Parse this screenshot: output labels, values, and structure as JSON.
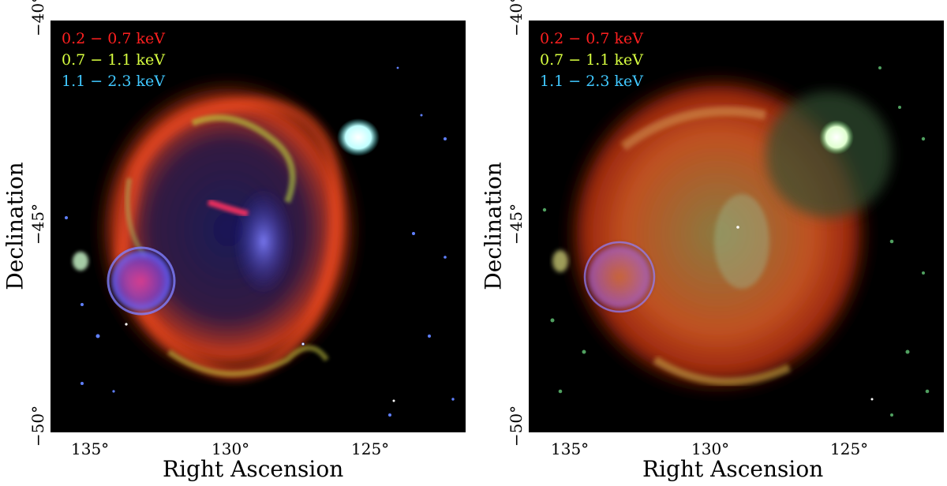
{
  "colors": {
    "soft_band": "#ff2020",
    "medium_band": "#d8ff40",
    "hard_band": "#40c8ff",
    "background": "#000000"
  },
  "panels": [
    {
      "legend": [
        {
          "text": "0.2 − 0.7 keV",
          "color": "#ff2020"
        },
        {
          "text": "0.7 − 1.1 keV",
          "color": "#d8ff40"
        },
        {
          "text": "1.1 − 2.3 keV",
          "color": "#40c8ff"
        }
      ],
      "x_axis": {
        "label": "Right Ascension",
        "ticks": [
          "135°",
          "130°",
          "125°"
        ]
      },
      "y_axis": {
        "label": "Declination",
        "ticks": [
          "−40°",
          "−45°",
          "−50°"
        ]
      }
    },
    {
      "legend": [
        {
          "text": "0.2 − 0.7 keV",
          "color": "#ff2020"
        },
        {
          "text": "0.7 − 1.1 keV",
          "color": "#d8ff40"
        },
        {
          "text": "1.1 − 2.3 keV",
          "color": "#40c8ff"
        }
      ],
      "x_axis": {
        "label": "Right Ascension",
        "ticks": [
          "135°",
          "130°",
          "125°"
        ]
      },
      "y_axis": {
        "label": "Declination",
        "ticks": [
          "−40°",
          "−45°",
          "−50°"
        ]
      }
    }
  ]
}
